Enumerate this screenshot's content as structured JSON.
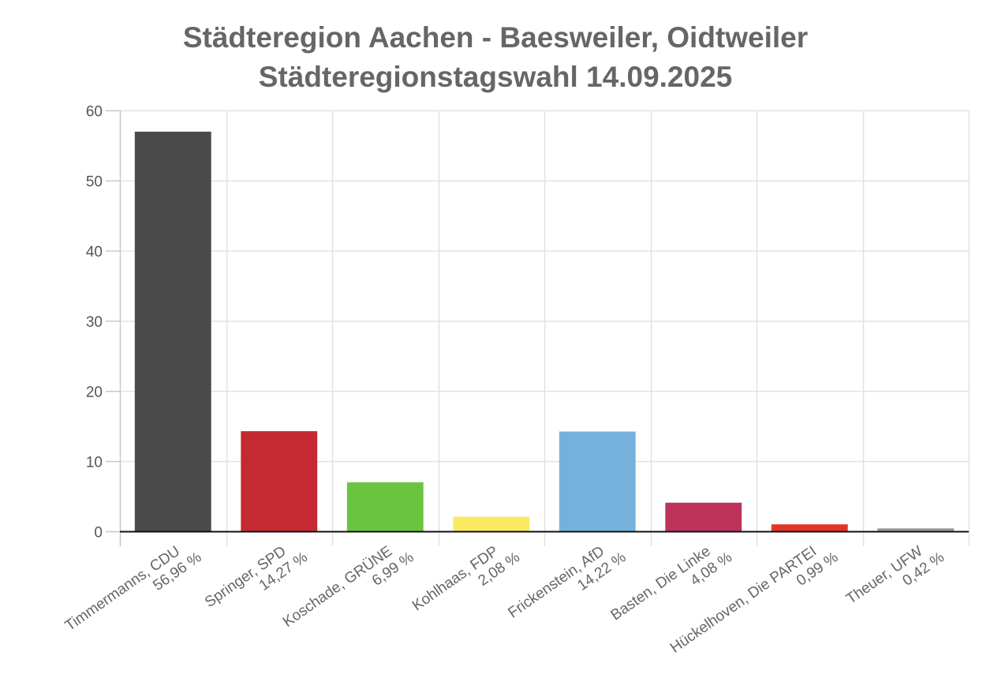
{
  "chart_data": {
    "type": "bar",
    "title": "Städteregion Aachen - Baesweiler, Oidtweiler",
    "subtitle": "Städteregionstagswahl 14.09.2025",
    "xlabel": "",
    "ylabel": "",
    "ylim": [
      0,
      60
    ],
    "yticks": [
      0,
      10,
      20,
      30,
      40,
      50,
      60
    ],
    "grid": true,
    "legend": "none",
    "categories": [
      {
        "name": "Timmermanns, CDU",
        "label": "56,96 %"
      },
      {
        "name": "Springer, SPD",
        "label": "14,27 %"
      },
      {
        "name": "Koschade, GRÜNE",
        "label": "6,99 %"
      },
      {
        "name": "Kohlhaas, FDP",
        "label": "2,08 %"
      },
      {
        "name": "Frickenstein, AfD",
        "label": "14,22 %"
      },
      {
        "name": "Basten, Die Linke",
        "label": "4,08 %"
      },
      {
        "name": "Hückelhoven, Die PARTEI",
        "label": "0,99 %"
      },
      {
        "name": "Theuer, UFW",
        "label": "0,42 %"
      }
    ],
    "values": [
      56.96,
      14.27,
      6.99,
      2.08,
      14.22,
      4.08,
      0.99,
      0.42
    ],
    "colors": [
      "#4a4a4a",
      "#c52a33",
      "#6ac43f",
      "#f9ea62",
      "#76b1dc",
      "#bd335c",
      "#e13429",
      "#999999"
    ]
  }
}
